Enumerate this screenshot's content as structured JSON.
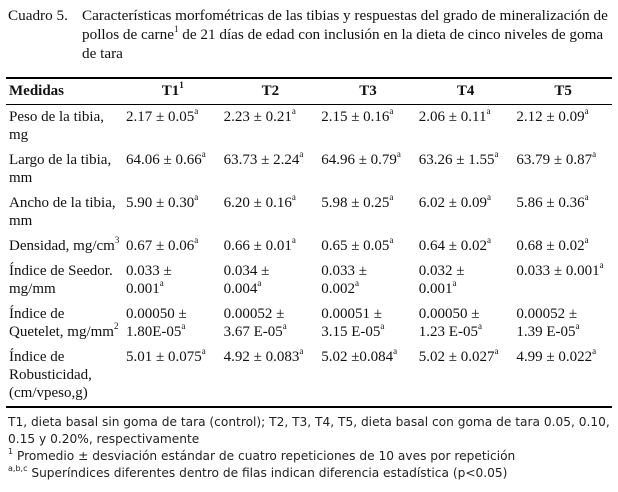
{
  "caption": {
    "label": "Cuadro 5.",
    "text_part1": "Características morfométricas de las tibias y respuestas del grado de mineralización de pollos de carne",
    "text_sup": "1",
    "text_part2": " de 21 días de edad con inclusión en la dieta de cinco niveles de goma de tara"
  },
  "table": {
    "headers": [
      {
        "label": "Medidas",
        "sup": ""
      },
      {
        "label": "T1",
        "sup": "1"
      },
      {
        "label": "T2",
        "sup": ""
      },
      {
        "label": "T3",
        "sup": ""
      },
      {
        "label": "T4",
        "sup": ""
      },
      {
        "label": "T5",
        "sup": ""
      }
    ],
    "rows": [
      {
        "label": "Peso de la tibia, mg",
        "cells": [
          {
            "v": "2.17 ± 0.05",
            "s": "a"
          },
          {
            "v": "2.23 ± 0.21",
            "s": "a"
          },
          {
            "v": "2.15 ± 0.16",
            "s": "a"
          },
          {
            "v": "2.06 ± 0.11",
            "s": "a"
          },
          {
            "v": "2.12 ± 0.09",
            "s": "a"
          }
        ]
      },
      {
        "label": "Largo de la tibia, mm",
        "cells": [
          {
            "v": "64.06 ± 0.66",
            "s": "a"
          },
          {
            "v": "63.73 ± 2.24",
            "s": "a"
          },
          {
            "v": "64.96 ± 0.79",
            "s": "a"
          },
          {
            "v": "63.26 ± 1.55",
            "s": "a"
          },
          {
            "v": "63.79 ± 0.87",
            "s": "a"
          }
        ]
      },
      {
        "label": "Ancho de la tibia, mm",
        "cells": [
          {
            "v": "5.90 ± 0.30",
            "s": "a"
          },
          {
            "v": "6.20 ± 0.16",
            "s": "a"
          },
          {
            "v": "5.98 ± 0.25",
            "s": "a"
          },
          {
            "v": "6.02 ± 0.09",
            "s": "a"
          },
          {
            "v": "5.86 ± 0.36",
            "s": "a"
          }
        ]
      },
      {
        "label": "Densidad, mg/cm",
        "label_sup": "3",
        "cells": [
          {
            "v": "0.67 ± 0.06",
            "s": "a"
          },
          {
            "v": "0.66 ± 0.01",
            "s": "a"
          },
          {
            "v": "0.65 ± 0.05",
            "s": "a"
          },
          {
            "v": "0.64 ± 0.02",
            "s": "a"
          },
          {
            "v": "0.68 ± 0.02",
            "s": "a"
          }
        ]
      },
      {
        "label": "Índice de Seedor. mg/mm",
        "cells": [
          {
            "l1": "0.033 ±",
            "l2": "0.001",
            "s": "a"
          },
          {
            "l1": "0.034 ±",
            "l2": "0.004",
            "s": "a"
          },
          {
            "l1": "0.033 ±",
            "l2": "0.002",
            "s": "a"
          },
          {
            "l1": "0.032 ±",
            "l2": "0.001",
            "s": "a"
          },
          {
            "v": "0.033 ± 0.001",
            "s": "a"
          }
        ]
      },
      {
        "label": "Índice de Quetelet, mg/mm",
        "label_sup": "2",
        "cells": [
          {
            "l1": "0.00050 ±",
            "l2": "1.80E-05",
            "s": "a"
          },
          {
            "l1": "0.00052 ±",
            "l2": "3.67 E-05",
            "s": "a"
          },
          {
            "l1": "0.00051 ±",
            "l2": "3.15 E-05",
            "s": "a"
          },
          {
            "l1": "0.00050 ±",
            "l2": "1.23 E-05",
            "s": "a"
          },
          {
            "l1": "0.00052 ±",
            "l2": "1.39 E-05",
            "s": "a"
          }
        ]
      },
      {
        "label": "Índice de Robusticidad, (cm/vpeso,g)",
        "cells": [
          {
            "v": "5.01 ± 0.075",
            "s": "a"
          },
          {
            "v": "4.92 ± 0.083",
            "s": "a"
          },
          {
            "v": "5.02 ±0.084",
            "s": "a"
          },
          {
            "v": "5.02 ± 0.027",
            "s": "a"
          },
          {
            "v": "4.99 ± 0.022",
            "s": "a"
          }
        ]
      }
    ]
  },
  "notes": {
    "n1": "T1, dieta basal sin goma de tara (control); T2, T3, T4, T5, dieta basal con goma de tara 0.05, 0.10, 0.15 y 0.20%, respectivamente",
    "n2_sup": "1",
    "n2": " Promedio ± desviación estándar de cuatro repeticiones de 10 aves por repetición",
    "n3_sup": "a,b,c",
    "n3": " Superíndices diferentes dentro de filas indican diferencia estadística (p<0.05)"
  }
}
